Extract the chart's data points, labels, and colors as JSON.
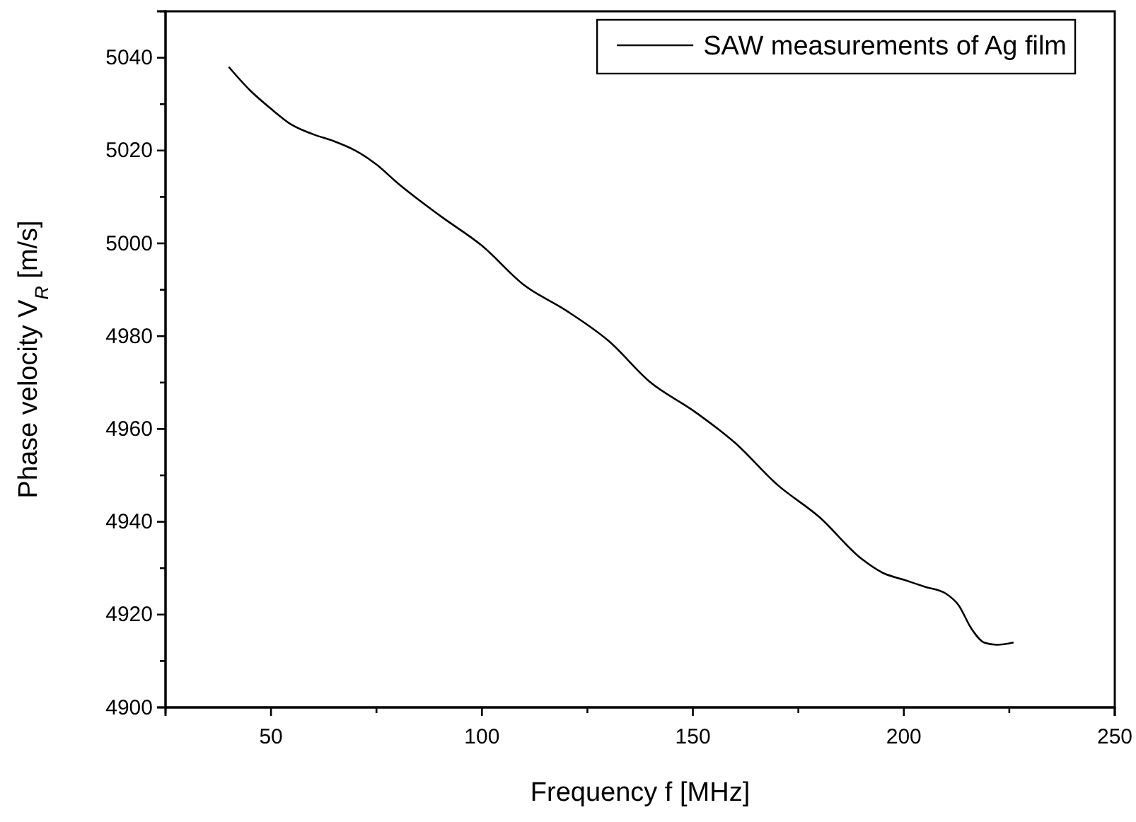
{
  "chart_data": {
    "type": "line",
    "xlabel": "Frequency f [MHz]",
    "ylabel": "Phase velocity V$_{R}$ [m/s]",
    "xlim": [
      25,
      250
    ],
    "xticks": [
      {
        "value": 25,
        "label": null
      },
      50,
      {
        "value": 75,
        "label": null
      },
      100,
      {
        "value": 125,
        "label": null
      },
      150,
      {
        "value": 175,
        "label": null
      },
      200,
      {
        "value": 225,
        "label": null
      },
      250
    ],
    "ylim": [
      4900,
      5050
    ],
    "yticks": [
      4900,
      {
        "value": 4910,
        "label": null
      },
      4920,
      {
        "value": 4930,
        "label": null
      },
      4940,
      {
        "value": 4950,
        "label": null
      },
      4960,
      {
        "value": 4970,
        "label": null
      },
      4980,
      {
        "value": 4990,
        "label": null
      },
      5000,
      {
        "value": 5010,
        "label": null
      },
      5020,
      {
        "value": 5030,
        "label": null
      },
      5040,
      {
        "value": 5050,
        "label": null
      }
    ],
    "legend": "top right",
    "grid": false,
    "series": [
      {
        "name": "SAW measurements of Ag film",
        "color": "#000000",
        "x": [
          40,
          45,
          50,
          55,
          60,
          65,
          70,
          75,
          80,
          90,
          100,
          110,
          120,
          130,
          140,
          150,
          160,
          170,
          180,
          190,
          195,
          200,
          205,
          210,
          213,
          216,
          219,
          222,
          226
        ],
        "values": [
          5038,
          5033,
          5029,
          5025.5,
          5023.5,
          5022,
          5020,
          5017,
          5013,
          5006,
          4999.5,
          4991,
          4985.5,
          4979,
          4970,
          4964,
          4957,
          4948,
          4941,
          4932,
          4929,
          4927.5,
          4926,
          4924.5,
          4922,
          4917,
          4914,
          4913.5,
          4914
        ]
      }
    ]
  }
}
